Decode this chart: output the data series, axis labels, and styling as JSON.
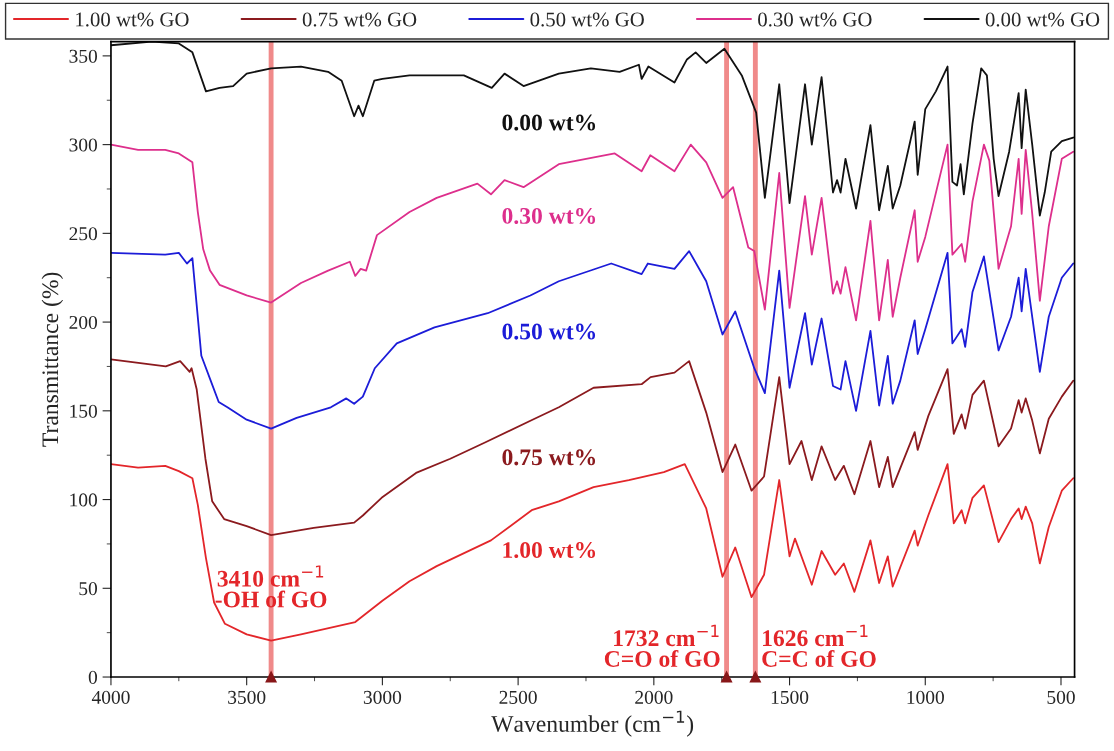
{
  "chart_data": {
    "type": "line",
    "xlabel": "Wavenumber (cm$^{−1}$)",
    "ylabel": "Transmittance (%)",
    "xlim": [
      4000,
      450
    ],
    "ylim": [
      0,
      358
    ],
    "xticks": [
      4000,
      {
        "value": 3750,
        "label": null
      },
      3500,
      {
        "value": 3250,
        "label": null
      },
      3000,
      {
        "value": 2750,
        "label": null
      },
      2500,
      {
        "value": 2250,
        "label": null
      },
      2000,
      {
        "value": 1750,
        "label": null
      },
      1500,
      {
        "value": 1250,
        "label": null
      },
      1000,
      {
        "value": 750,
        "label": null
      },
      500
    ],
    "yticks": [
      0,
      {
        "value": 25,
        "label": null
      },
      50,
      {
        "value": 75,
        "label": null
      },
      100,
      {
        "value": 125,
        "label": null
      },
      150,
      {
        "value": 175,
        "label": null
      },
      200,
      {
        "value": 225,
        "label": null
      },
      250,
      {
        "value": 275,
        "label": null
      },
      300,
      {
        "value": 325,
        "label": null
      },
      350
    ],
    "legend": "top",
    "grid": false,
    "series": [
      {
        "name": "1.00 wt% GO",
        "color": "#e3262a",
        "x": [
          4000,
          3900,
          3800,
          3750,
          3700,
          3680,
          3650,
          3620,
          3580,
          3500,
          3410,
          3300,
          3100,
          3000,
          2900,
          2800,
          2600,
          2450,
          2350,
          2222,
          2092,
          1963,
          1886,
          1807,
          1747,
          1700,
          1640,
          1594,
          1538,
          1500,
          1480,
          1418,
          1382,
          1332,
          1300,
          1261,
          1202,
          1170,
          1138,
          1120,
          1039,
          1028,
          989,
          918,
          895,
          866,
          853,
          826,
          784,
          730,
          684,
          656,
          645,
          630,
          606,
          578,
          545,
          497,
          455
        ],
        "values": [
          120,
          118,
          119,
          116,
          112,
          97,
          67,
          42,
          30,
          24,
          20.5,
          24,
          31,
          43,
          54,
          62.5,
          77,
          94,
          99,
          107,
          111,
          115.5,
          120,
          95,
          56.5,
          73,
          45,
          57.6,
          111,
          68,
          78,
          52,
          71,
          57.6,
          64,
          48,
          77,
          53,
          68,
          51,
          82.5,
          74,
          91,
          120,
          86.6,
          94,
          86.6,
          101,
          108,
          76,
          89,
          95,
          89,
          96,
          86.6,
          64,
          84.5,
          105,
          112
        ]
      },
      {
        "name": "0.75 wt% GO",
        "color": "#8b1a1e",
        "x": [
          4000,
          3798,
          3745,
          3710,
          3703,
          3684,
          3652,
          3627,
          3583,
          3500,
          3410,
          3253,
          3104,
          3072,
          3003,
          2876,
          2750,
          2624,
          2447,
          2350,
          2222,
          2045,
          2012,
          1924,
          1870,
          1807,
          1747,
          1700,
          1640,
          1594,
          1538,
          1500,
          1456,
          1418,
          1382,
          1332,
          1300,
          1261,
          1202,
          1170,
          1138,
          1120,
          1039,
          1028,
          989,
          918,
          895,
          866,
          853,
          826,
          784,
          730,
          684,
          656,
          645,
          630,
          606,
          578,
          545,
          497,
          455
        ],
        "values": [
          179,
          175,
          178,
          172,
          174,
          162,
          123,
          99,
          89,
          85,
          80,
          84,
          87,
          91,
          101,
          115,
          123,
          132,
          145,
          152,
          163,
          165,
          169,
          171.5,
          178,
          149,
          115.5,
          131,
          105,
          113,
          169,
          120,
          133,
          111,
          130,
          111,
          119,
          103,
          133,
          107,
          124,
          107,
          138,
          128,
          147,
          173.5,
          137,
          148,
          140,
          159,
          167,
          130,
          140,
          156,
          149,
          157,
          144.5,
          126,
          145.5,
          158,
          167
        ]
      },
      {
        "name": "0.50 wt% GO",
        "color": "#1c1cd8",
        "x": [
          4000,
          3800,
          3750,
          3720,
          3700,
          3667,
          3635,
          3603,
          3571,
          3500,
          3410,
          3316,
          3190,
          3133,
          3104,
          3072,
          3028,
          2947,
          2808,
          2612,
          2455,
          2350,
          2157,
          2045,
          2022,
          1924,
          1870,
          1807,
          1747,
          1700,
          1630,
          1591,
          1538,
          1500,
          1443,
          1418,
          1382,
          1340,
          1312,
          1294,
          1255,
          1202,
          1170,
          1138,
          1120,
          1092,
          1039,
          1028,
          1000,
          918,
          900,
          866,
          853,
          826,
          784,
          730,
          684,
          656,
          645,
          630,
          606,
          578,
          545,
          497,
          455
        ],
        "values": [
          239,
          238,
          239,
          233,
          236,
          181,
          168,
          155,
          152,
          145,
          140,
          146,
          152,
          157,
          154,
          158,
          174,
          188,
          197,
          205,
          215,
          223,
          233,
          227,
          233,
          230,
          240,
          223,
          193,
          206,
          174,
          160,
          229,
          163,
          205,
          176,
          202,
          164,
          162,
          178,
          150,
          195,
          153,
          181,
          154,
          167,
          201,
          182,
          196,
          239,
          188,
          196,
          186,
          217,
          237,
          184,
          203,
          225,
          206,
          230,
          203,
          172,
          203,
          225,
          233
        ]
      },
      {
        "name": "0.30 wt% GO",
        "color": "#dd2f8c",
        "x": [
          4000,
          3900,
          3800,
          3750,
          3700,
          3680,
          3660,
          3635,
          3600,
          3500,
          3410,
          3300,
          3200,
          3120,
          3100,
          3080,
          3060,
          3020,
          2900,
          2800,
          2650,
          2600,
          2550,
          2480,
          2350,
          2144,
          2045,
          2013,
          1924,
          1864,
          1807,
          1747,
          1708,
          1652,
          1630,
          1591,
          1538,
          1500,
          1443,
          1418,
          1382,
          1340,
          1325,
          1312,
          1294,
          1255,
          1202,
          1170,
          1138,
          1120,
          1092,
          1039,
          1028,
          1000,
          918,
          900,
          866,
          853,
          826,
          784,
          764,
          730,
          684,
          656,
          645,
          630,
          606,
          578,
          545,
          497,
          455
        ],
        "values": [
          300,
          297,
          297,
          295,
          290,
          262,
          241,
          229,
          221,
          215,
          211,
          222,
          229,
          234,
          226,
          230,
          229,
          249,
          262,
          270,
          278,
          272,
          280,
          276,
          289,
          295,
          285,
          294,
          285,
          300,
          290,
          270,
          276,
          242,
          240,
          207,
          284,
          208,
          271,
          238,
          270,
          216,
          223,
          216,
          231,
          201,
          257,
          201,
          235,
          203,
          225,
          263,
          234,
          248,
          300,
          238,
          244,
          234,
          268,
          300,
          291,
          230,
          254,
          292,
          261,
          297,
          261,
          212,
          254,
          292,
          296
        ]
      },
      {
        "name": "0.00 wt% GO",
        "color": "#111111",
        "x": [
          4000,
          3850,
          3750,
          3700,
          3650,
          3600,
          3550,
          3500,
          3410,
          3300,
          3200,
          3150,
          3104,
          3088,
          3072,
          3030,
          3000,
          2900,
          2700,
          2597,
          2550,
          2480,
          2350,
          2232,
          2126,
          2055,
          2045,
          2020,
          1924,
          1878,
          1846,
          1807,
          1740,
          1676,
          1623,
          1591,
          1538,
          1500,
          1443,
          1418,
          1382,
          1340,
          1325,
          1312,
          1294,
          1255,
          1202,
          1170,
          1138,
          1120,
          1092,
          1039,
          1028,
          1000,
          961,
          918,
          900,
          883,
          870,
          858,
          826,
          794,
          773,
          748,
          730,
          691,
          656,
          645,
          630,
          606,
          578,
          560,
          536,
          497,
          455
        ],
        "values": [
          356,
          358,
          357,
          352,
          330,
          332,
          333,
          340,
          343,
          344,
          341,
          336,
          316,
          322,
          316,
          336,
          337,
          339,
          339,
          332,
          340,
          333,
          340,
          343,
          341,
          345,
          337,
          344,
          335,
          348,
          352,
          346,
          354,
          339,
          318,
          270,
          334,
          267,
          334,
          300,
          338,
          273,
          280,
          273,
          292,
          264,
          311,
          263,
          288,
          264,
          277,
          313,
          283,
          320,
          330,
          344,
          279,
          277,
          289,
          272,
          312,
          343,
          339,
          292,
          271,
          296,
          329,
          298,
          331,
          300,
          260,
          273,
          296,
          302,
          304
        ]
      }
    ],
    "annotations": [
      "0.00 wt%",
      "0.30 wt%",
      "0.50 wt%",
      "0.75 wt%",
      "1.00 wt%"
    ],
    "ref_lines": [
      {
        "axis": "x",
        "value": 3410,
        "label": "3410 cm$^{−1}$\n-OH of GO",
        "color": "#f08a8a"
      },
      {
        "axis": "x",
        "value": 1732,
        "label": "1732 cm$^{−1}$\nC=O of GO",
        "color": "#f08a8a"
      },
      {
        "axis": "x",
        "value": 1626,
        "label": "1626 cm$^{−1}$\nC=C of GO",
        "color": "#f08a8a"
      }
    ]
  }
}
